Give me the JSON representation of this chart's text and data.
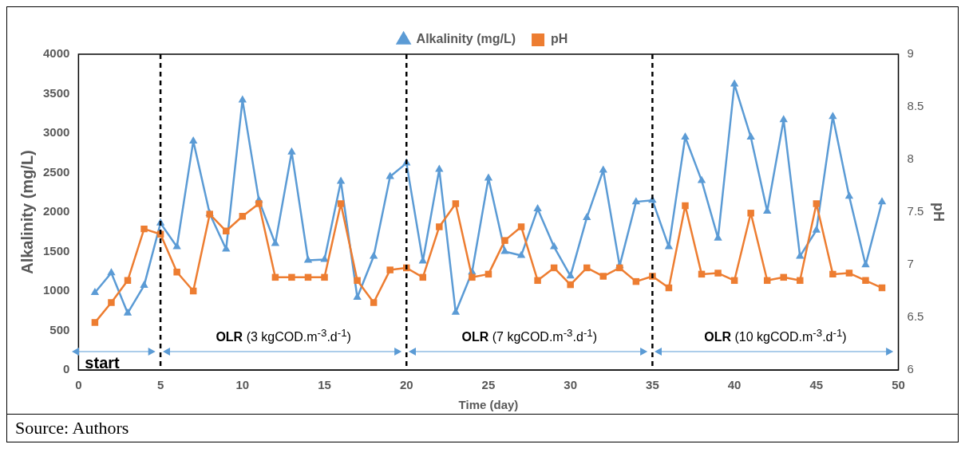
{
  "chart_data": {
    "type": "line",
    "xlabel": "Time (day)",
    "ylabel": "Alkalinity (mg/L)",
    "y2label": "pH",
    "x": [
      1,
      2,
      3,
      4,
      5,
      6,
      7,
      8,
      9,
      10,
      11,
      12,
      13,
      14,
      15,
      16,
      17,
      18,
      19,
      20,
      21,
      22,
      23,
      24,
      25,
      26,
      27,
      28,
      29,
      30,
      31,
      32,
      33,
      34,
      35,
      36,
      37,
      38,
      39,
      40,
      41,
      42,
      43,
      44,
      45,
      46,
      47,
      48,
      49
    ],
    "series": [
      {
        "name": "Alkalinity (mg/L)",
        "color": "#5b9bd5",
        "marker": "triangle",
        "values": [
          980,
          1230,
          720,
          1070,
          1860,
          1560,
          2900,
          1980,
          1530,
          3420,
          2150,
          1600,
          2760,
          1390,
          1400,
          2390,
          920,
          1440,
          2450,
          2620,
          1380,
          2540,
          730,
          1240,
          2430,
          1500,
          1450,
          2040,
          1560,
          1190,
          1930,
          2530,
          1320,
          2130,
          2150,
          1560,
          2950,
          2400,
          1670,
          3620,
          2950,
          2010,
          3170,
          1440,
          1770,
          3210,
          2200,
          1330,
          2130
        ]
      },
      {
        "name": "pH",
        "color": "#ed7d31",
        "marker": "square",
        "axis": "y2",
        "values": [
          6.45,
          6.64,
          6.85,
          7.34,
          7.29,
          6.93,
          6.75,
          7.48,
          7.32,
          7.46,
          7.58,
          6.88,
          6.88,
          6.88,
          6.88,
          7.58,
          6.85,
          6.64,
          6.95,
          6.97,
          6.88,
          7.36,
          7.58,
          6.88,
          6.91,
          7.23,
          7.36,
          6.85,
          6.97,
          6.81,
          6.97,
          6.89,
          6.97,
          6.84,
          6.89,
          6.78,
          7.56,
          6.91,
          6.92,
          6.85,
          7.49,
          6.85,
          6.88,
          6.85,
          7.58,
          6.91,
          6.92,
          6.85,
          6.78
        ]
      }
    ],
    "xlim": [
      0,
      50
    ],
    "xticks": [
      0,
      5,
      10,
      15,
      20,
      25,
      30,
      35,
      40,
      45,
      50
    ],
    "ylim": [
      0,
      4000
    ],
    "yticks": [
      0,
      500,
      1000,
      1500,
      2000,
      2500,
      3000,
      3500,
      4000
    ],
    "y2lim": [
      6,
      9
    ],
    "y2ticks": [
      6,
      6.5,
      7,
      7.5,
      8,
      8.5,
      9
    ],
    "ref_lines": [
      {
        "axis": "x",
        "value": 5,
        "color": "#000000",
        "line_style": "dashed"
      },
      {
        "axis": "x",
        "value": 20,
        "color": "#000000",
        "line_style": "dashed"
      },
      {
        "axis": "x",
        "value": 35,
        "color": "#000000",
        "line_style": "dashed"
      }
    ],
    "annotations": [
      "start",
      "OLR (3 kgCOD.m$^{-3}$.d$^{-1}$)",
      "OLR (7 kgCOD.m$^{-3}$.d$^{-1}$)",
      "OLR (10 kgCOD.m$^{-3}$.d$^{-1}$)",
      "Source: Authors"
    ],
    "grid": false,
    "legend": "top"
  }
}
